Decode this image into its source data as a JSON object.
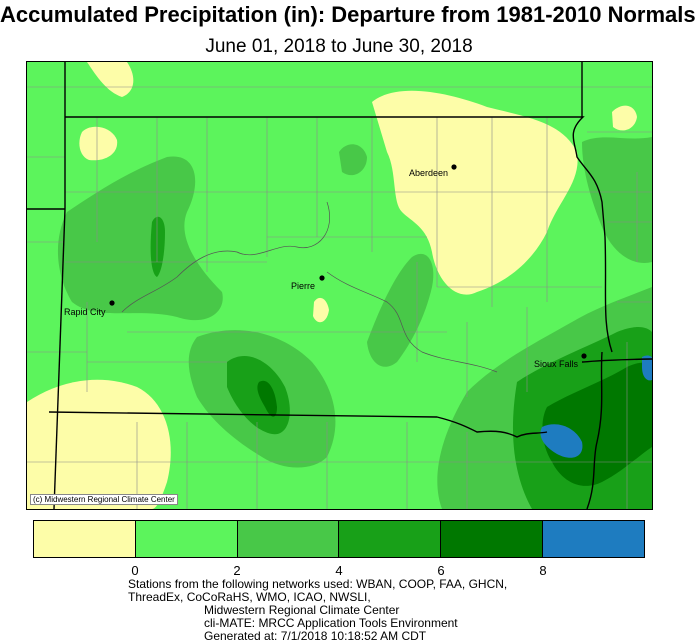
{
  "title": "Accumulated Precipitation (in): Departure from 1981-2010 Normals",
  "subtitle": "June 01, 2018 to June 30, 2018",
  "copyright": "(c) Midwestern Regional Climate Center",
  "cities": {
    "aberdeen": "Aberdeen",
    "pierre": "Pierre",
    "rapid_city": "Rapid City",
    "sioux_falls": "Sioux Falls"
  },
  "legend": {
    "colors": [
      "#fdfda8",
      "#5cf45c",
      "#48c848",
      "#18a018",
      "#007800",
      "#1e7cc0"
    ],
    "ticks": [
      "0",
      "2",
      "4",
      "6",
      "8"
    ]
  },
  "footer": {
    "line1": "Stations from the following networks used: WBAN, COOP, FAA, GHCN,",
    "line2": "ThreadEx, CoCoRaHS, WMO, ICAO, NWSLI,",
    "line3": "Midwestern Regional Climate Center",
    "line4": "cli-MATE: MRCC Application Tools Environment",
    "line5": "Generated at: 7/1/2018 10:18:52 AM CDT"
  }
}
